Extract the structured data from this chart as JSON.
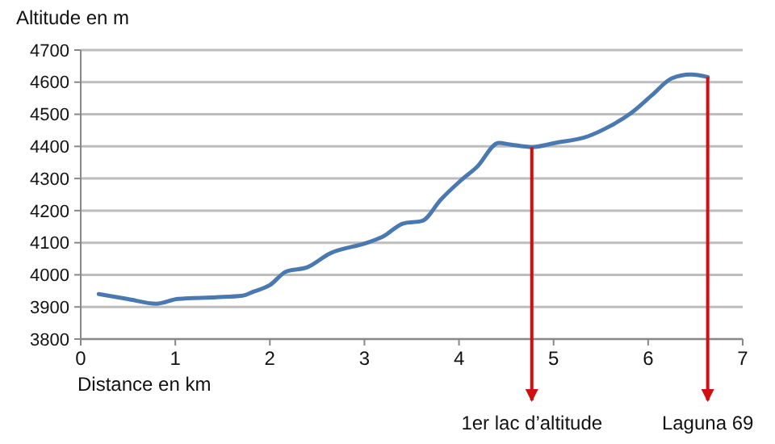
{
  "chart_data": {
    "type": "line",
    "ylabel": "Altitude en m",
    "xlabel": "Distance en km",
    "x": [
      0.19,
      0.49,
      0.8,
      1.03,
      1.43,
      1.71,
      1.83,
      2.0,
      2.17,
      2.4,
      2.63,
      3.03,
      3.2,
      3.41,
      3.61,
      3.81,
      4.02,
      4.19,
      4.42,
      4.54,
      4.77,
      5.02,
      5.36,
      5.59,
      5.82,
      6.05,
      6.25,
      6.45,
      6.63
    ],
    "series": [
      {
        "color": "#4a78b0",
        "values": [
          3940,
          3925,
          3910,
          3925,
          3930,
          3935,
          3948,
          3968,
          4010,
          4024,
          4066,
          4100,
          4120,
          4160,
          4168,
          4235,
          4294,
          4336,
          4411,
          4406,
          4398,
          4411,
          4431,
          4462,
          4504,
          4562,
          4612,
          4624,
          4616
        ]
      }
    ],
    "xlim": [
      0,
      7
    ],
    "xticks": [
      0,
      1,
      2,
      3,
      4,
      5,
      6,
      7
    ],
    "ylim": [
      3800,
      4700
    ],
    "yticks": [
      3800,
      3900,
      4000,
      4100,
      4200,
      4300,
      4400,
      4500,
      4600,
      4700
    ],
    "grid": "y",
    "marker": "none",
    "line_style": "solid",
    "ref_lines": [
      {
        "axis": "x",
        "value": 4.77,
        "label": "1er lac d’altitude",
        "color": "#d01010"
      },
      {
        "axis": "x",
        "value": 6.63,
        "label": "Laguna 69",
        "color": "#d01010"
      }
    ]
  }
}
